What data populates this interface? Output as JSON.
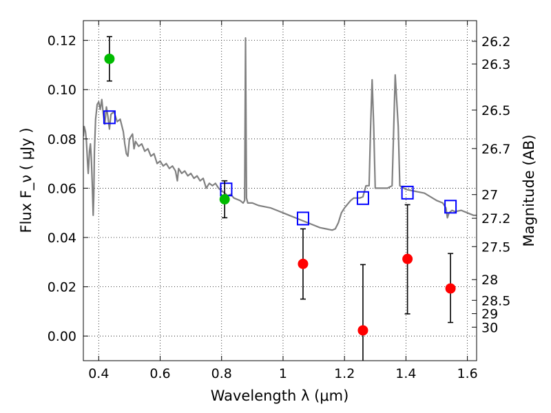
{
  "chart_data": {
    "type": "scatter",
    "xlim": [
      0.35,
      1.63
    ],
    "ylim": [
      -0.01,
      0.128
    ],
    "grid": true,
    "x_ticks": [
      0.4,
      0.6,
      0.8,
      1.0,
      1.2,
      1.4,
      1.6
    ],
    "x_tick_labels": [
      "0.4",
      "0.6",
      "0.8",
      "1",
      "1.2",
      "1.4",
      "1.6"
    ],
    "y_ticks": [
      0.0,
      0.02,
      0.04,
      0.06,
      0.08,
      0.1,
      0.12
    ],
    "y_tick_labels": [
      "0.00",
      "0.02",
      "0.04",
      "0.06",
      "0.08",
      "0.10",
      "0.12"
    ],
    "xlabel": "Wavelength  λ (μm)",
    "ylabel": "Flux  F_ν  ( μJy )",
    "right_axis": {
      "label": "Magnitude (AB)",
      "ticks": [
        {
          "flux": 0.1196,
          "label": "26.2"
        },
        {
          "flux": 0.1104,
          "label": "26.3"
        },
        {
          "flux": 0.0917,
          "label": "26.5"
        },
        {
          "flux": 0.0761,
          "label": "26.7"
        },
        {
          "flux": 0.0574,
          "label": "27"
        },
        {
          "flux": 0.0478,
          "label": "27.2"
        },
        {
          "flux": 0.0363,
          "label": "27.5"
        },
        {
          "flux": 0.0229,
          "label": "28"
        },
        {
          "flux": 0.0145,
          "label": "28.5"
        },
        {
          "flux": 0.0091,
          "label": "29"
        },
        {
          "flux": 0.0036,
          "label": "30"
        }
      ]
    },
    "model_spectrum": {
      "color": "#808080",
      "points": [
        [
          0.35,
          0.081
        ],
        [
          0.353,
          0.085
        ],
        [
          0.357,
          0.083
        ],
        [
          0.36,
          0.079
        ],
        [
          0.363,
          0.072
        ],
        [
          0.366,
          0.066
        ],
        [
          0.37,
          0.075
        ],
        [
          0.373,
          0.078
        ],
        [
          0.376,
          0.072
        ],
        [
          0.379,
          0.062
        ],
        [
          0.382,
          0.049
        ],
        [
          0.384,
          0.057
        ],
        [
          0.386,
          0.075
        ],
        [
          0.39,
          0.088
        ],
        [
          0.395,
          0.094
        ],
        [
          0.4,
          0.095
        ],
        [
          0.405,
          0.092
        ],
        [
          0.41,
          0.096
        ],
        [
          0.415,
          0.09
        ],
        [
          0.42,
          0.086
        ],
        [
          0.425,
          0.093
        ],
        [
          0.43,
          0.089
        ],
        [
          0.435,
          0.084
        ],
        [
          0.44,
          0.09
        ],
        [
          0.45,
          0.091
        ],
        [
          0.46,
          0.087
        ],
        [
          0.47,
          0.088
        ],
        [
          0.48,
          0.083
        ],
        [
          0.485,
          0.078
        ],
        [
          0.49,
          0.074
        ],
        [
          0.495,
          0.073
        ],
        [
          0.5,
          0.08
        ],
        [
          0.51,
          0.082
        ],
        [
          0.515,
          0.076
        ],
        [
          0.52,
          0.079
        ],
        [
          0.53,
          0.077
        ],
        [
          0.54,
          0.078
        ],
        [
          0.55,
          0.075
        ],
        [
          0.56,
          0.076
        ],
        [
          0.57,
          0.073
        ],
        [
          0.58,
          0.074
        ],
        [
          0.59,
          0.07
        ],
        [
          0.6,
          0.071
        ],
        [
          0.61,
          0.069
        ],
        [
          0.62,
          0.07
        ],
        [
          0.63,
          0.068
        ],
        [
          0.64,
          0.069
        ],
        [
          0.65,
          0.067
        ],
        [
          0.656,
          0.063
        ],
        [
          0.66,
          0.068
        ],
        [
          0.67,
          0.066
        ],
        [
          0.68,
          0.067
        ],
        [
          0.69,
          0.065
        ],
        [
          0.7,
          0.066
        ],
        [
          0.71,
          0.064
        ],
        [
          0.72,
          0.065
        ],
        [
          0.73,
          0.063
        ],
        [
          0.74,
          0.064
        ],
        [
          0.75,
          0.06
        ],
        [
          0.76,
          0.062
        ],
        [
          0.77,
          0.061
        ],
        [
          0.78,
          0.062
        ],
        [
          0.79,
          0.06
        ],
        [
          0.8,
          0.059
        ],
        [
          0.81,
          0.058
        ],
        [
          0.82,
          0.057
        ],
        [
          0.83,
          0.0575
        ],
        [
          0.84,
          0.056
        ],
        [
          0.85,
          0.0555
        ],
        [
          0.86,
          0.055
        ],
        [
          0.87,
          0.054
        ],
        [
          0.875,
          0.055
        ],
        [
          0.878,
          0.121
        ],
        [
          0.881,
          0.056
        ],
        [
          0.885,
          0.054
        ],
        [
          0.89,
          0.054
        ],
        [
          0.9,
          0.054
        ],
        [
          0.92,
          0.053
        ],
        [
          0.94,
          0.0525
        ],
        [
          0.96,
          0.052
        ],
        [
          0.98,
          0.051
        ],
        [
          1.0,
          0.05
        ],
        [
          1.02,
          0.049
        ],
        [
          1.04,
          0.048
        ],
        [
          1.06,
          0.047
        ],
        [
          1.08,
          0.046
        ],
        [
          1.1,
          0.045
        ],
        [
          1.12,
          0.044
        ],
        [
          1.14,
          0.0435
        ],
        [
          1.16,
          0.043
        ],
        [
          1.17,
          0.0435
        ],
        [
          1.18,
          0.046
        ],
        [
          1.19,
          0.05
        ],
        [
          1.2,
          0.052
        ],
        [
          1.21,
          0.0535
        ],
        [
          1.22,
          0.055
        ],
        [
          1.23,
          0.056
        ],
        [
          1.24,
          0.056
        ],
        [
          1.25,
          0.056
        ],
        [
          1.26,
          0.0565
        ],
        [
          1.27,
          0.061
        ],
        [
          1.28,
          0.061
        ],
        [
          1.285,
          0.085
        ],
        [
          1.29,
          0.104
        ],
        [
          1.295,
          0.085
        ],
        [
          1.3,
          0.06
        ],
        [
          1.32,
          0.06
        ],
        [
          1.34,
          0.06
        ],
        [
          1.355,
          0.061
        ],
        [
          1.365,
          0.106
        ],
        [
          1.375,
          0.085
        ],
        [
          1.38,
          0.061
        ],
        [
          1.4,
          0.0595
        ],
        [
          1.42,
          0.059
        ],
        [
          1.44,
          0.0585
        ],
        [
          1.46,
          0.058
        ],
        [
          1.48,
          0.0565
        ],
        [
          1.5,
          0.055
        ],
        [
          1.52,
          0.054
        ],
        [
          1.53,
          0.052
        ],
        [
          1.535,
          0.048
        ],
        [
          1.54,
          0.05
        ],
        [
          1.55,
          0.051
        ],
        [
          1.56,
          0.0505
        ],
        [
          1.58,
          0.051
        ],
        [
          1.6,
          0.05
        ],
        [
          1.62,
          0.049
        ],
        [
          1.63,
          0.049
        ]
      ]
    },
    "series": [
      {
        "marker": "open-square",
        "color": "#0000ff",
        "points": [
          {
            "x": 0.435,
            "y": 0.0888
          },
          {
            "x": 0.815,
            "y": 0.0595
          },
          {
            "x": 1.065,
            "y": 0.0477
          },
          {
            "x": 1.26,
            "y": 0.056
          },
          {
            "x": 1.405,
            "y": 0.0582
          },
          {
            "x": 1.545,
            "y": 0.0525
          }
        ]
      },
      {
        "marker": "filled-circle",
        "color": "#00bb00",
        "points": [
          {
            "x": 0.435,
            "y": 0.1125,
            "err_low": 0.1035,
            "err_high": 0.1215
          },
          {
            "x": 0.81,
            "y": 0.0555,
            "err_low": 0.048,
            "err_high": 0.063
          }
        ]
      },
      {
        "marker": "filled-circle",
        "color": "#ff0000",
        "points": [
          {
            "x": 1.065,
            "y": 0.0293,
            "err_low": 0.015,
            "err_high": 0.0435
          },
          {
            "x": 1.26,
            "y": 0.0023,
            "err_low": -0.011,
            "err_high": 0.029
          },
          {
            "x": 1.405,
            "y": 0.0313,
            "err_low": 0.009,
            "err_high": 0.0533
          },
          {
            "x": 1.545,
            "y": 0.0193,
            "err_low": 0.0055,
            "err_high": 0.0335
          }
        ]
      }
    ]
  }
}
